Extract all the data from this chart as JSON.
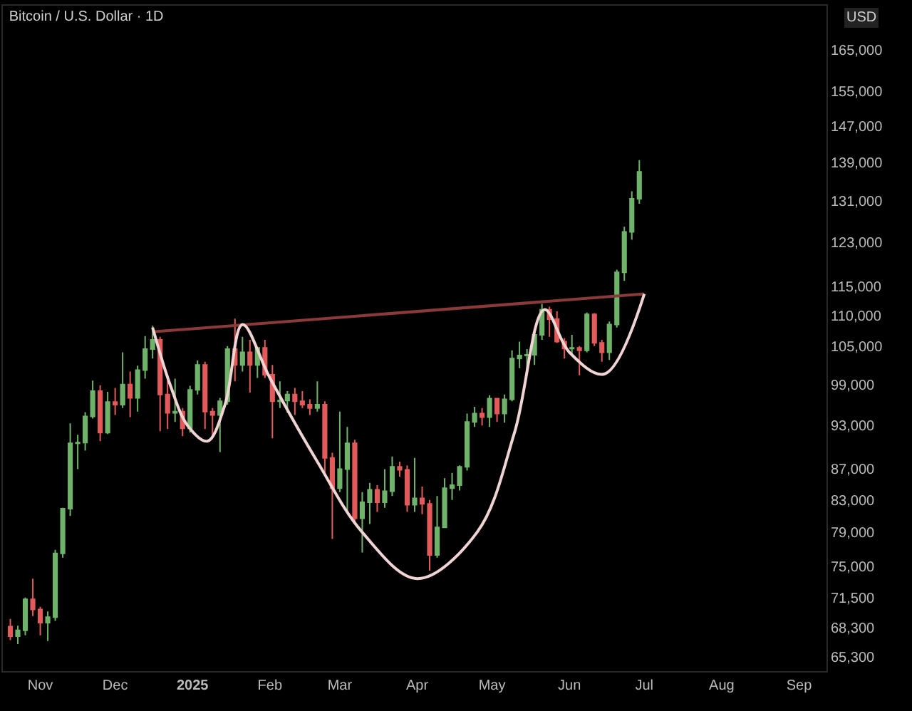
{
  "chart_data": {
    "type": "candlestick",
    "title": "Bitcoin / U.S. Dollar · 1D",
    "ylabel": "USD",
    "log": "y",
    "grid": false,
    "xlim": [
      "2024-10-17",
      "2025-09-12"
    ],
    "xticks": [
      {
        "value": "2024-11-01",
        "label": "Nov"
      },
      {
        "value": "2024-12-01",
        "label": "Dec"
      },
      {
        "value": "2025-01-01",
        "label": "2025"
      },
      {
        "value": "2025-02-01",
        "label": "Feb"
      },
      {
        "value": "2025-03-01",
        "label": "Mar"
      },
      {
        "value": "2025-04-01",
        "label": "Apr"
      },
      {
        "value": "2025-05-01",
        "label": "May"
      },
      {
        "value": "2025-06-01",
        "label": "Jun"
      },
      {
        "value": "2025-07-01",
        "label": "Jul"
      },
      {
        "value": "2025-08-01",
        "label": "Aug"
      },
      {
        "value": "2025-09-01",
        "label": "Sep"
      }
    ],
    "ylim": [
      63900,
      176600
    ],
    "yticks": [
      {
        "value": 65300,
        "label": "65,300"
      },
      {
        "value": 68300,
        "label": "68,300"
      },
      {
        "value": 71500,
        "label": "71,500"
      },
      {
        "value": 75000,
        "label": "75,000"
      },
      {
        "value": 79000,
        "label": "79,000"
      },
      {
        "value": 83000,
        "label": "83,000"
      },
      {
        "value": 87000,
        "label": "87,000"
      },
      {
        "value": 93000,
        "label": "93,000"
      },
      {
        "value": 99000,
        "label": "99,000"
      },
      {
        "value": 105000,
        "label": "105,000"
      },
      {
        "value": 110000,
        "label": "110,000"
      },
      {
        "value": 115000,
        "label": "115,000"
      },
      {
        "value": 123000,
        "label": "123,000"
      },
      {
        "value": 131000,
        "label": "131,000"
      },
      {
        "value": 139000,
        "label": "139,000"
      },
      {
        "value": 147000,
        "label": "147,000"
      },
      {
        "value": 155000,
        "label": "155,000"
      },
      {
        "value": 165000,
        "label": "165,000"
      }
    ],
    "x": [
      "2024-10-20",
      "2024-10-23",
      "2024-10-26",
      "2024-10-29",
      "2024-11-01",
      "2024-11-04",
      "2024-11-07",
      "2024-11-10",
      "2024-11-13",
      "2024-11-16",
      "2024-11-19",
      "2024-11-22",
      "2024-11-25",
      "2024-11-28",
      "2024-12-01",
      "2024-12-04",
      "2024-12-07",
      "2024-12-10",
      "2024-12-13",
      "2024-12-16",
      "2024-12-19",
      "2024-12-22",
      "2024-12-25",
      "2024-12-28",
      "2024-12-31",
      "2025-01-03",
      "2025-01-06",
      "2025-01-09",
      "2025-01-12",
      "2025-01-15",
      "2025-01-18",
      "2025-01-21",
      "2025-01-24",
      "2025-01-27",
      "2025-01-30",
      "2025-02-02",
      "2025-02-05",
      "2025-02-08",
      "2025-02-11",
      "2025-02-14",
      "2025-02-17",
      "2025-02-20",
      "2025-02-23",
      "2025-02-26",
      "2025-03-01",
      "2025-03-04",
      "2025-03-07",
      "2025-03-10",
      "2025-03-13",
      "2025-03-16",
      "2025-03-19",
      "2025-03-22",
      "2025-03-25",
      "2025-03-28",
      "2025-03-31",
      "2025-04-03",
      "2025-04-06",
      "2025-04-09",
      "2025-04-12",
      "2025-04-15",
      "2025-04-18",
      "2025-04-21",
      "2025-04-24",
      "2025-04-27",
      "2025-04-30",
      "2025-05-03",
      "2025-05-06",
      "2025-05-09",
      "2025-05-12",
      "2025-05-15",
      "2025-05-18",
      "2025-05-21",
      "2025-05-24",
      "2025-05-27",
      "2025-05-30",
      "2025-06-02",
      "2025-06-05",
      "2025-06-08",
      "2025-06-11",
      "2025-06-14",
      "2025-06-17",
      "2025-06-20",
      "2025-06-23",
      "2025-06-26",
      "2025-06-29"
    ],
    "ohlc": [
      [
        68400,
        69200,
        67000,
        67400
      ],
      [
        67400,
        68500,
        66600,
        68000
      ],
      [
        68000,
        71500,
        67500,
        71300
      ],
      [
        71300,
        73600,
        69500,
        70200
      ],
      [
        70200,
        70500,
        67500,
        68800
      ],
      [
        68800,
        70000,
        66900,
        69400
      ],
      [
        69400,
        76900,
        69000,
        76500
      ],
      [
        76500,
        82000,
        76000,
        81900
      ],
      [
        81900,
        93300,
        81000,
        90500
      ],
      [
        90500,
        91700,
        87000,
        90600
      ],
      [
        90600,
        94900,
        89500,
        94300
      ],
      [
        94300,
        99600,
        94000,
        98000
      ],
      [
        98000,
        98900,
        90800,
        92000
      ],
      [
        92000,
        97900,
        91800,
        96400
      ],
      [
        96400,
        98500,
        94500,
        96000
      ],
      [
        96000,
        104000,
        95500,
        99000
      ],
      [
        99000,
        101000,
        94200,
        97000
      ],
      [
        97000,
        101900,
        95000,
        101200
      ],
      [
        101200,
        106600,
        99900,
        104500
      ],
      [
        104500,
        108300,
        103000,
        106000
      ],
      [
        106000,
        106500,
        92200,
        97500
      ],
      [
        97500,
        99600,
        92500,
        94800
      ],
      [
        94800,
        99900,
        93500,
        95000
      ],
      [
        95000,
        95500,
        91500,
        92600
      ],
      [
        92600,
        98800,
        92000,
        98200
      ],
      [
        98200,
        102700,
        97500,
        102000
      ],
      [
        102000,
        102500,
        92500,
        95000
      ],
      [
        95000,
        95500,
        91200,
        94500
      ],
      [
        94500,
        97000,
        89300,
        96500
      ],
      [
        96500,
        105000,
        96000,
        104500
      ],
      [
        104500,
        109500,
        99500,
        102000
      ],
      [
        102000,
        106500,
        101000,
        104000
      ],
      [
        104000,
        106000,
        97800,
        102000
      ],
      [
        102000,
        104800,
        100000,
        104700
      ],
      [
        104700,
        106000,
        100000,
        100500
      ],
      [
        100500,
        102000,
        91200,
        96500
      ],
      [
        96500,
        99500,
        95500,
        96600
      ],
      [
        96600,
        98000,
        94800,
        97500
      ],
      [
        97500,
        98500,
        94500,
        96500
      ],
      [
        96500,
        98000,
        95500,
        96000
      ],
      [
        96000,
        96800,
        94500,
        95500
      ],
      [
        95500,
        99500,
        95000,
        96000
      ],
      [
        96000,
        96500,
        86500,
        88500
      ],
      [
        88500,
        89200,
        78200,
        84500
      ],
      [
        84500,
        95000,
        84000,
        87000
      ],
      [
        87000,
        92800,
        81500,
        90500
      ],
      [
        90500,
        91000,
        80100,
        80700
      ],
      [
        80700,
        84000,
        76600,
        82700
      ],
      [
        82700,
        85200,
        80000,
        84300
      ],
      [
        84300,
        84900,
        81500,
        82700
      ],
      [
        82700,
        87000,
        82000,
        84100
      ],
      [
        84100,
        88700,
        83500,
        87300
      ],
      [
        87300,
        88000,
        86000,
        86900
      ],
      [
        86900,
        87500,
        81500,
        82400
      ],
      [
        82400,
        88500,
        81500,
        83200
      ],
      [
        83200,
        84700,
        81200,
        82500
      ],
      [
        82500,
        83000,
        74500,
        76300
      ],
      [
        76300,
        83500,
        76000,
        79600
      ],
      [
        79600,
        85800,
        79500,
        84500
      ],
      [
        84500,
        86500,
        83000,
        84900
      ],
      [
        84900,
        87500,
        84200,
        87300
      ],
      [
        87300,
        94700,
        86800,
        93500
      ],
      [
        93500,
        95700,
        92800,
        94700
      ],
      [
        94700,
        95500,
        93000,
        94200
      ],
      [
        94200,
        97400,
        92800,
        96900
      ],
      [
        96900,
        96900,
        93500,
        94700
      ],
      [
        94700,
        97500,
        93400,
        96800
      ],
      [
        96800,
        104300,
        96500,
        103000
      ],
      [
        103000,
        105700,
        101500,
        103500
      ],
      [
        103500,
        104500,
        101400,
        103600
      ],
      [
        103600,
        107000,
        102000,
        106800
      ],
      [
        106800,
        112000,
        106000,
        111000
      ],
      [
        111000,
        111500,
        106500,
        109400
      ],
      [
        109400,
        110700,
        105500,
        105700
      ],
      [
        105700,
        106300,
        103000,
        104600
      ],
      [
        104600,
        106800,
        103500,
        104700
      ],
      [
        104700,
        105000,
        100400,
        104300
      ],
      [
        104300,
        110500,
        104000,
        110200
      ],
      [
        110200,
        110400,
        105000,
        105500
      ],
      [
        105500,
        106000,
        102500,
        104000
      ],
      [
        104000,
        109000,
        102800,
        108500
      ],
      [
        108500,
        118000,
        108000,
        117500
      ],
      [
        117500,
        126000,
        116000,
        125000
      ],
      [
        125000,
        133000,
        123500,
        131500
      ],
      [
        131500,
        139500,
        130500,
        137000
      ]
    ],
    "series": [
      {
        "type": "line",
        "color": "#8a3a3a",
        "x": [
          "2024-12-16",
          "2025-07-01"
        ],
        "values": [
          107300,
          113700
        ]
      },
      {
        "type": "line",
        "color": "#f0d4d4",
        "x": [
          "2024-12-16",
          "2024-12-23",
          "2024-12-30",
          "2025-01-07",
          "2025-01-14",
          "2025-01-21",
          "2025-02-01",
          "2025-02-20",
          "2025-03-10",
          "2025-04-01",
          "2025-04-25",
          "2025-05-10",
          "2025-05-22",
          "2025-06-01",
          "2025-06-15",
          "2025-07-01"
        ],
        "values": [
          108000,
          99000,
          93000,
          90800,
          96000,
          108500,
          100000,
          88000,
          79000,
          73600,
          79000,
          92000,
          111000,
          104000,
          100600,
          113700
        ]
      }
    ]
  }
}
